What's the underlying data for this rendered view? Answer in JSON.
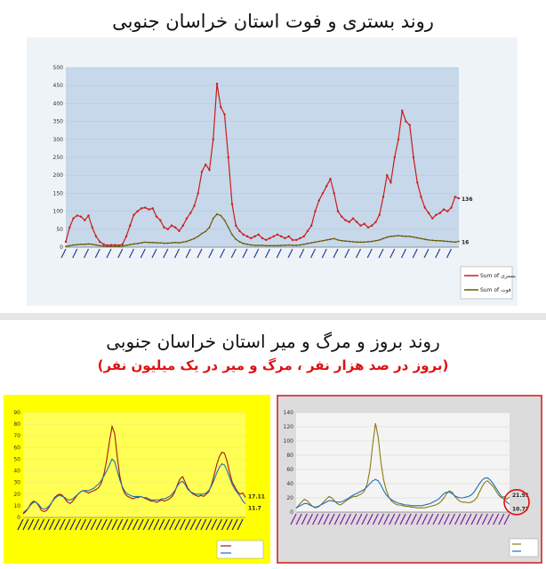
{
  "titles": {
    "top": "روند بستری و فوت استان خراسان جنوبی",
    "bottom": "روند بروز و مرگ و میر استان خراسان جنوبی",
    "bottom_sub": "(بروز در صد هزار نفر ، مرگ و میر در یک میلیون نفر)"
  },
  "colors": {
    "hospital": "#cc1a1a",
    "death": "#6b5a00",
    "iran": "#1f6fb8",
    "province": "#a8141e",
    "bg1": "#c6d8ea",
    "bg2": "#ffff00",
    "bg3": "#dcdcdc",
    "frame3": "#d02020"
  },
  "chart_data": [
    {
      "type": "line",
      "ylim": [
        0,
        500
      ],
      "yticks": [
        0,
        50,
        100,
        150,
        200,
        250,
        300,
        350,
        400,
        450,
        500
      ],
      "legend_entries": [
        "Sum of بستری",
        "Sum of فوت"
      ],
      "legend_position": "bottom-right",
      "end_labels": [
        "136",
        "16"
      ],
      "series": [
        {
          "name": "Sum of بستری",
          "values": [
            15,
            55,
            80,
            88,
            85,
            75,
            88,
            55,
            30,
            15,
            8,
            5,
            6,
            6,
            5,
            8,
            30,
            60,
            90,
            100,
            108,
            110,
            105,
            108,
            85,
            75,
            55,
            50,
            60,
            55,
            45,
            60,
            80,
            95,
            115,
            150,
            210,
            230,
            215,
            300,
            455,
            390,
            370,
            250,
            120,
            60,
            45,
            35,
            30,
            25,
            30,
            35,
            25,
            20,
            25,
            30,
            35,
            30,
            25,
            30,
            20,
            20,
            25,
            30,
            45,
            60,
            100,
            130,
            150,
            170,
            190,
            150,
            100,
            85,
            75,
            70,
            80,
            70,
            60,
            65,
            55,
            60,
            70,
            90,
            140,
            200,
            180,
            250,
            300,
            380,
            350,
            340,
            250,
            180,
            140,
            110,
            95,
            80,
            90,
            95,
            105,
            100,
            110,
            140,
            136
          ]
        },
        {
          "name": "Sum of فوت",
          "values": [
            2,
            4,
            6,
            7,
            8,
            8,
            9,
            8,
            6,
            4,
            3,
            2,
            2,
            2,
            2,
            3,
            5,
            7,
            9,
            10,
            12,
            14,
            13,
            13,
            12,
            12,
            11,
            11,
            12,
            13,
            12,
            14,
            16,
            20,
            24,
            30,
            38,
            44,
            55,
            80,
            92,
            88,
            75,
            55,
            35,
            22,
            15,
            10,
            8,
            6,
            5,
            5,
            5,
            4,
            4,
            4,
            4,
            5,
            5,
            6,
            5,
            5,
            6,
            8,
            10,
            12,
            14,
            16,
            18,
            20,
            22,
            24,
            20,
            18,
            17,
            16,
            15,
            14,
            14,
            14,
            15,
            16,
            18,
            20,
            24,
            28,
            30,
            31,
            32,
            31,
            30,
            30,
            28,
            26,
            24,
            22,
            20,
            19,
            18,
            18,
            17,
            16,
            15,
            14,
            16
          ]
        }
      ]
    },
    {
      "type": "line",
      "ylim": [
        0,
        90
      ],
      "yticks": [
        0,
        10,
        20,
        30,
        40,
        50,
        60,
        70,
        80,
        90
      ],
      "end_labels": [
        "17.11",
        "11.7"
      ],
      "series": [
        {
          "name": "province",
          "values": [
            3,
            5,
            8,
            12,
            14,
            13,
            10,
            6,
            5,
            6,
            9,
            13,
            17,
            19,
            20,
            19,
            16,
            13,
            12,
            14,
            17,
            20,
            22,
            23,
            22,
            21,
            22,
            23,
            24,
            26,
            30,
            38,
            50,
            65,
            78,
            72,
            52,
            35,
            25,
            20,
            18,
            17,
            16,
            17,
            17,
            18,
            17,
            16,
            15,
            14,
            14,
            13,
            14,
            15,
            14,
            15,
            16,
            18,
            22,
            28,
            33,
            35,
            30,
            25,
            22,
            20,
            19,
            18,
            19,
            18,
            20,
            22,
            28,
            36,
            45,
            52,
            56,
            55,
            48,
            38,
            30,
            26,
            22,
            20,
            21,
            17.11
          ]
        },
        {
          "name": "iran",
          "values": [
            4,
            6,
            8,
            11,
            13,
            13,
            11,
            8,
            7,
            8,
            10,
            13,
            16,
            18,
            19,
            18,
            17,
            15,
            15,
            16,
            18,
            20,
            22,
            23,
            23,
            23,
            24,
            25,
            27,
            29,
            32,
            36,
            40,
            45,
            50,
            48,
            40,
            32,
            26,
            22,
            20,
            19,
            18,
            18,
            18,
            18,
            17,
            17,
            16,
            15,
            15,
            15,
            15,
            16,
            16,
            17,
            18,
            20,
            23,
            27,
            30,
            31,
            28,
            24,
            22,
            21,
            20,
            20,
            20,
            20,
            21,
            23,
            27,
            32,
            38,
            43,
            46,
            45,
            40,
            34,
            28,
            24,
            21,
            18,
            14,
            11.7
          ]
        }
      ]
    },
    {
      "type": "line",
      "ylim": [
        0,
        140
      ],
      "yticks": [
        0,
        20,
        40,
        60,
        80,
        100,
        120,
        140
      ],
      "legend_position": "bottom-right",
      "end_labels": [
        "21.51",
        "10.77"
      ],
      "series": [
        {
          "name": "province",
          "values": [
            5,
            10,
            14,
            18,
            16,
            12,
            8,
            6,
            7,
            10,
            14,
            18,
            22,
            20,
            16,
            12,
            10,
            12,
            15,
            18,
            20,
            22,
            22,
            24,
            26,
            30,
            40,
            60,
            95,
            125,
            105,
            70,
            45,
            30,
            20,
            15,
            12,
            10,
            10,
            9,
            8,
            8,
            7,
            7,
            6,
            6,
            6,
            6,
            7,
            8,
            9,
            10,
            12,
            15,
            20,
            26,
            30,
            28,
            22,
            18,
            15,
            14,
            14,
            13,
            14,
            16,
            20,
            28,
            36,
            42,
            44,
            40,
            36,
            30,
            24,
            20,
            22,
            18,
            21.51
          ]
        },
        {
          "name": "iran",
          "values": [
            6,
            8,
            10,
            12,
            12,
            10,
            8,
            7,
            8,
            10,
            12,
            14,
            16,
            16,
            15,
            14,
            14,
            15,
            17,
            19,
            22,
            24,
            26,
            28,
            30,
            32,
            36,
            40,
            44,
            46,
            44,
            38,
            30,
            24,
            20,
            17,
            15,
            13,
            12,
            11,
            10,
            10,
            9,
            9,
            9,
            9,
            9,
            10,
            11,
            12,
            14,
            16,
            18,
            22,
            26,
            28,
            28,
            26,
            23,
            21,
            20,
            20,
            21,
            22,
            24,
            28,
            34,
            40,
            45,
            48,
            48,
            45,
            40,
            34,
            28,
            22,
            18,
            14,
            10.77
          ]
        }
      ]
    }
  ]
}
